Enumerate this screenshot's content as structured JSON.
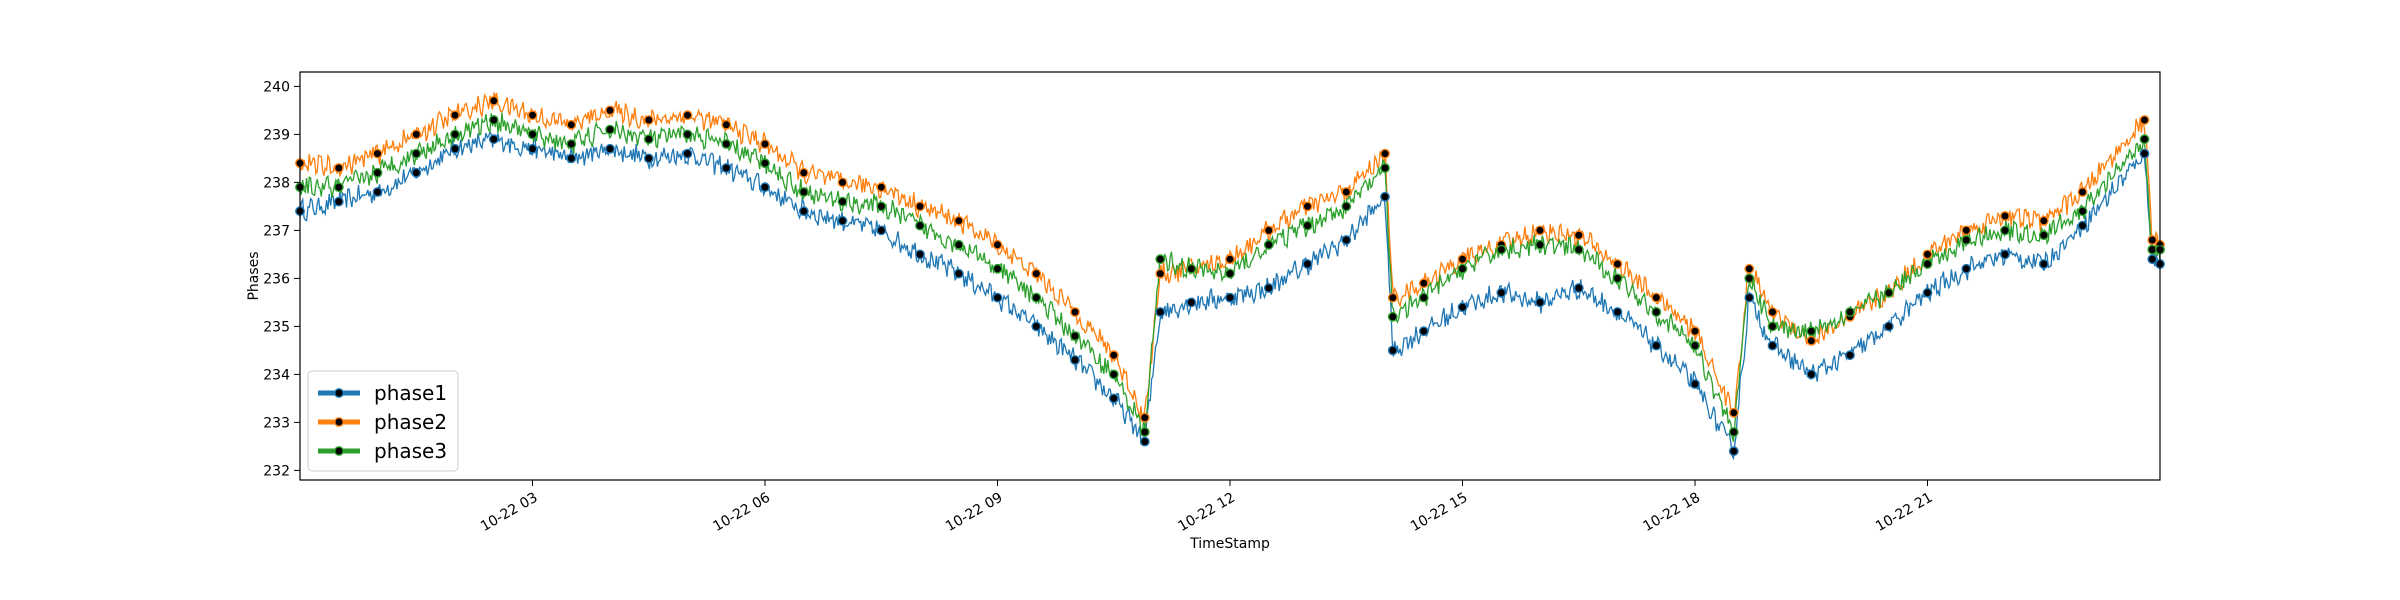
{
  "chart_data": {
    "type": "line",
    "title": "",
    "xlabel": "TimeStamp",
    "ylabel": "Phases",
    "xlim": [
      0,
      24
    ],
    "ylim": [
      231.8,
      240.3
    ],
    "x_ticks": [
      {
        "x": 3,
        "label": "10-22 03"
      },
      {
        "x": 6,
        "label": "10-22 06"
      },
      {
        "x": 9,
        "label": "10-22 09"
      },
      {
        "x": 12,
        "label": "10-22 12"
      },
      {
        "x": 15,
        "label": "10-22 15"
      },
      {
        "x": 18,
        "label": "10-22 18"
      },
      {
        "x": 21,
        "label": "10-22 21"
      }
    ],
    "y_ticks": [
      232,
      233,
      234,
      235,
      236,
      237,
      238,
      239,
      240
    ],
    "legend_position": "lower-left",
    "grid": false,
    "series": [
      {
        "name": "phase1",
        "color": "#1f77b4",
        "x": [
          0,
          0.5,
          1,
          1.5,
          2,
          2.5,
          3,
          3.5,
          4,
          4.5,
          5,
          5.5,
          6,
          6.5,
          7,
          7.5,
          8,
          8.5,
          9,
          9.5,
          10,
          10.5,
          10.9,
          11.1,
          11.5,
          12,
          12.5,
          13,
          13.5,
          14,
          14.1,
          14.5,
          15,
          15.5,
          16,
          16.5,
          17,
          17.5,
          18,
          18.5,
          18.7,
          19,
          19.5,
          20,
          20.5,
          21,
          21.5,
          22,
          22.5,
          23,
          23.8,
          23.9,
          24
        ],
        "y": [
          237.4,
          237.6,
          237.8,
          238.2,
          238.7,
          238.9,
          238.7,
          238.5,
          238.7,
          238.5,
          238.6,
          238.3,
          237.9,
          237.4,
          237.2,
          237.0,
          236.5,
          236.1,
          235.6,
          235.0,
          234.3,
          233.5,
          232.6,
          235.3,
          235.5,
          235.6,
          235.8,
          236.3,
          236.8,
          237.7,
          234.5,
          234.9,
          235.4,
          235.7,
          235.5,
          235.8,
          235.3,
          234.6,
          233.8,
          232.4,
          235.6,
          234.6,
          234.0,
          234.4,
          235.0,
          235.7,
          236.2,
          236.5,
          236.3,
          237.1,
          238.6,
          236.4,
          236.3
        ]
      },
      {
        "name": "phase2",
        "color": "#ff7f0e",
        "x": [
          0,
          0.5,
          1,
          1.5,
          2,
          2.5,
          3,
          3.5,
          4,
          4.5,
          5,
          5.5,
          6,
          6.5,
          7,
          7.5,
          8,
          8.5,
          9,
          9.5,
          10,
          10.5,
          10.9,
          11.1,
          11.5,
          12,
          12.5,
          13,
          13.5,
          14,
          14.1,
          14.5,
          15,
          15.5,
          16,
          16.5,
          17,
          17.5,
          18,
          18.5,
          18.7,
          19,
          19.5,
          20,
          20.5,
          21,
          21.5,
          22,
          22.5,
          23,
          23.8,
          23.9,
          24
        ],
        "y": [
          238.4,
          238.3,
          238.6,
          239.0,
          239.4,
          239.7,
          239.4,
          239.2,
          239.5,
          239.3,
          239.4,
          239.2,
          238.8,
          238.2,
          238.0,
          237.9,
          237.5,
          237.2,
          236.7,
          236.1,
          235.3,
          234.4,
          233.1,
          236.1,
          236.2,
          236.4,
          237.0,
          237.5,
          237.8,
          238.6,
          235.6,
          235.9,
          236.4,
          236.7,
          237.0,
          236.9,
          236.3,
          235.6,
          234.9,
          233.2,
          236.2,
          235.3,
          234.7,
          235.2,
          235.7,
          236.5,
          237.0,
          237.3,
          237.2,
          237.8,
          239.3,
          236.8,
          236.7
        ]
      },
      {
        "name": "phase3",
        "color": "#2ca02c",
        "x": [
          0,
          0.5,
          1,
          1.5,
          2,
          2.5,
          3,
          3.5,
          4,
          4.5,
          5,
          5.5,
          6,
          6.5,
          7,
          7.5,
          8,
          8.5,
          9,
          9.5,
          10,
          10.5,
          10.9,
          11.1,
          11.5,
          12,
          12.5,
          13,
          13.5,
          14,
          14.1,
          14.5,
          15,
          15.5,
          16,
          16.5,
          17,
          17.5,
          18,
          18.5,
          18.7,
          19,
          19.5,
          20,
          20.5,
          21,
          21.5,
          22,
          22.5,
          23,
          23.8,
          23.9,
          24
        ],
        "y": [
          237.9,
          237.9,
          238.2,
          238.6,
          239.0,
          239.3,
          239.0,
          238.8,
          239.1,
          238.9,
          239.0,
          238.8,
          238.4,
          237.8,
          237.6,
          237.5,
          237.1,
          236.7,
          236.2,
          235.6,
          234.8,
          234.0,
          232.8,
          236.4,
          236.2,
          236.1,
          236.7,
          237.1,
          237.5,
          238.3,
          235.2,
          235.6,
          236.2,
          236.6,
          236.7,
          236.6,
          236.0,
          235.3,
          234.6,
          232.8,
          236.0,
          235.0,
          234.9,
          235.3,
          235.7,
          236.3,
          236.8,
          237.0,
          236.9,
          237.4,
          238.9,
          236.6,
          236.6
        ]
      }
    ]
  }
}
